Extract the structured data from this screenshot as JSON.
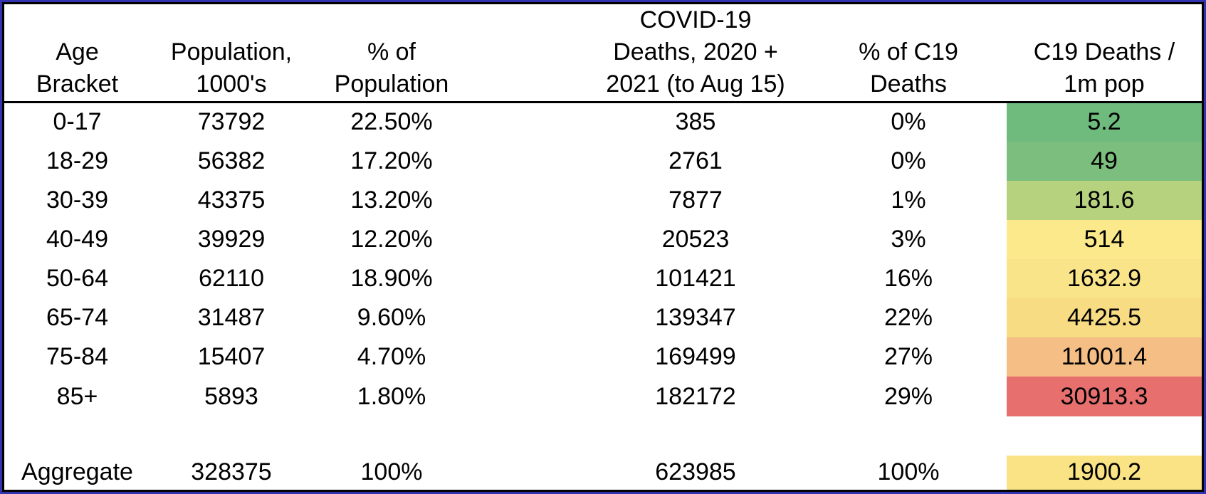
{
  "frame": {
    "outer_border_color": "#3333b0",
    "inner_border_color": "#000000"
  },
  "table": {
    "header": {
      "col1": {
        "l2": "Age",
        "l3": "Bracket"
      },
      "col2": {
        "l2": "Population,",
        "l3": "1000's"
      },
      "col3": {
        "l2": "% of",
        "l3": "Population"
      },
      "col4": {
        "l1": "COVID-19",
        "l2": "Deaths, 2020 +",
        "l3": "2021 (to Aug 15)"
      },
      "col5": {
        "l2": "% of C19",
        "l3": "Deaths"
      },
      "col6": {
        "l2": "C19 Deaths /",
        "l3": "1m pop"
      }
    },
    "rows": [
      {
        "age": "0-17",
        "population": "73792",
        "pct_pop": "22.50%",
        "deaths": "385",
        "pct_deaths": "0%",
        "per_1m": "5.2",
        "heat_color": "#6fbb7d"
      },
      {
        "age": "18-29",
        "population": "56382",
        "pct_pop": "17.20%",
        "deaths": "2761",
        "pct_deaths": "0%",
        "per_1m": "49",
        "heat_color": "#7cbe7d"
      },
      {
        "age": "30-39",
        "population": "43375",
        "pct_pop": "13.20%",
        "deaths": "7877",
        "pct_deaths": "1%",
        "per_1m": "181.6",
        "heat_color": "#b7d27f"
      },
      {
        "age": "40-49",
        "population": "39929",
        "pct_pop": "12.20%",
        "deaths": "20523",
        "pct_deaths": "3%",
        "per_1m": "514",
        "heat_color": "#fbe98c"
      },
      {
        "age": "50-64",
        "population": "62110",
        "pct_pop": "18.90%",
        "deaths": "101421",
        "pct_deaths": "16%",
        "per_1m": "1632.9",
        "heat_color": "#fae489"
      },
      {
        "age": "65-74",
        "population": "31487",
        "pct_pop": "9.60%",
        "deaths": "139347",
        "pct_deaths": "22%",
        "per_1m": "4425.5",
        "heat_color": "#f8dc84"
      },
      {
        "age": "75-84",
        "population": "15407",
        "pct_pop": "4.70%",
        "deaths": "169499",
        "pct_deaths": "27%",
        "per_1m": "11001.4",
        "heat_color": "#f4be84"
      },
      {
        "age": "85+",
        "population": "5893",
        "pct_pop": "1.80%",
        "deaths": "182172",
        "pct_deaths": "29%",
        "per_1m": "30913.3",
        "heat_color": "#e7706f"
      }
    ],
    "aggregate": {
      "age": "Aggregate",
      "population": "328375",
      "pct_pop": "100%",
      "deaths": "623985",
      "pct_deaths": "100%",
      "per_1m": "1900.2",
      "heat_color": "#fae385"
    }
  },
  "chart_data": {
    "type": "table",
    "title": "COVID-19 deaths by age bracket",
    "columns": [
      "Age Bracket",
      "Population, 1000's",
      "% of Population",
      "COVID-19 Deaths, 2020 + 2021 (to Aug 15)",
      "% of C19 Deaths",
      "C19 Deaths / 1m pop"
    ],
    "rows": [
      [
        "0-17",
        73792,
        "22.50%",
        385,
        "0%",
        5.2
      ],
      [
        "18-29",
        56382,
        "17.20%",
        2761,
        "0%",
        49
      ],
      [
        "30-39",
        43375,
        "13.20%",
        7877,
        "1%",
        181.6
      ],
      [
        "40-49",
        39929,
        "12.20%",
        20523,
        "3%",
        514
      ],
      [
        "50-64",
        62110,
        "18.90%",
        101421,
        "16%",
        1632.9
      ],
      [
        "65-74",
        31487,
        "9.60%",
        139347,
        "22%",
        4425.5
      ],
      [
        "75-84",
        15407,
        "4.70%",
        169499,
        "27%",
        11001.4
      ],
      [
        "85+",
        5893,
        "1.80%",
        182172,
        "29%",
        30913.3
      ]
    ],
    "aggregate_row": [
      "Aggregate",
      328375,
      "100%",
      623985,
      "100%",
      1900.2
    ],
    "heatmap": {
      "column": "C19 Deaths / 1m pop",
      "scale": "green-yellow-red (3-color scale, low to high)",
      "cell_colors": [
        "#6fbb7d",
        "#7cbe7d",
        "#b7d27f",
        "#fbe98c",
        "#fae489",
        "#f8dc84",
        "#f4be84",
        "#e7706f"
      ],
      "aggregate_color": "#fae385"
    },
    "layout": {
      "gridlines": false,
      "header_separator": "black rule under header",
      "outer_border": "black with navy-blue outer edge",
      "blank_row_before_aggregate": true
    }
  }
}
